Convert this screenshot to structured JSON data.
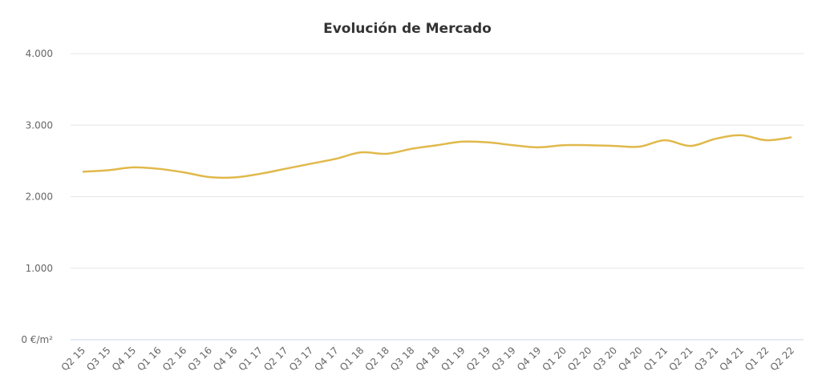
{
  "chart_data": {
    "type": "line",
    "title": "Evolución de Mercado",
    "categories": [
      "Q2 15",
      "Q3 15",
      "Q4 15",
      "Q1 16",
      "Q2 16",
      "Q3 16",
      "Q4 16",
      "Q1 17",
      "Q2 17",
      "Q3 17",
      "Q4 17",
      "Q1 18",
      "Q2 18",
      "Q3 18",
      "Q4 18",
      "Q1 19",
      "Q2 19",
      "Q3 19",
      "Q4 19",
      "Q1 20",
      "Q2 20",
      "Q3 20",
      "Q4 20",
      "Q1 21",
      "Q2 21",
      "Q3 21",
      "Q4 21",
      "Q1 22",
      "Q2 22"
    ],
    "series": [
      {
        "color": "#e0b94b",
        "values": [
          2350,
          2370,
          2410,
          2390,
          2340,
          2275,
          2270,
          2320,
          2390,
          2460,
          2530,
          2620,
          2600,
          2670,
          2720,
          2770,
          2760,
          2720,
          2690,
          2720,
          2720,
          2710,
          2700,
          2790,
          2710,
          2810,
          2860,
          2790,
          2830
        ]
      }
    ],
    "ylim": [
      0,
      4000
    ],
    "yticks": [
      {
        "value": 0,
        "label": "0 €/m²"
      },
      {
        "value": 1000,
        "label": "1.000"
      },
      {
        "value": 2000,
        "label": "2.000"
      },
      {
        "value": 3000,
        "label": "3.000"
      },
      {
        "value": 4000,
        "label": "4.000"
      }
    ],
    "grid": true
  }
}
